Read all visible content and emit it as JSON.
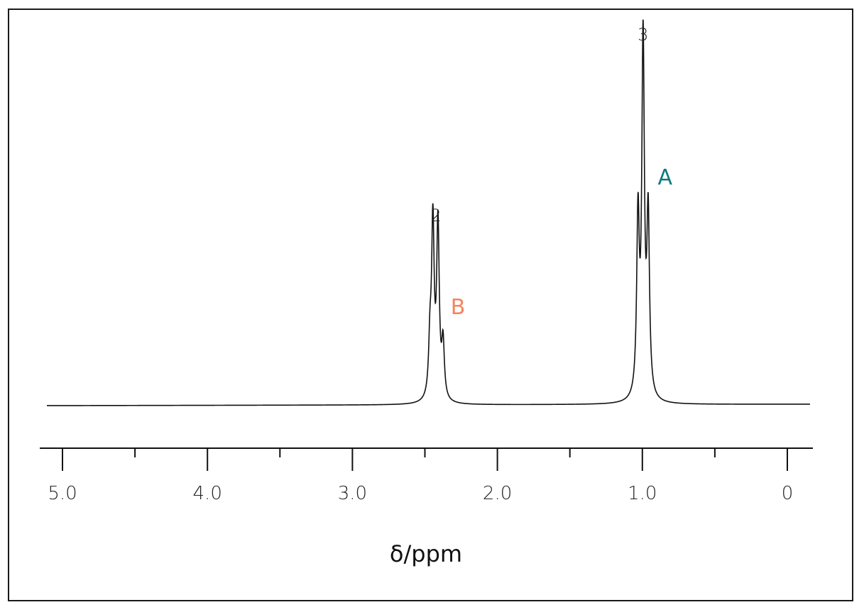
{
  "chart_data": {
    "type": "line",
    "title": "",
    "xlabel": "δ/ppm",
    "ylabel": "",
    "x_axis_reversed": true,
    "xlim": [
      5.1,
      -0.17
    ],
    "x_ticks_major": [
      5.0,
      4.0,
      3.0,
      2.0,
      1.0,
      0.0
    ],
    "x_tick_labels": [
      "5.0",
      "4.0",
      "3.0",
      "2.0",
      "1.0",
      "0"
    ],
    "x_ticks_minor": [
      4.5,
      3.5,
      2.5,
      1.5,
      0.5
    ],
    "grid": false,
    "signals": [
      {
        "label": "B",
        "label_color": "#f4845f",
        "integration": "2",
        "multiplicity": "quartet",
        "lines": [
          {
            "shift": 2.465,
            "intensity": 0.145
          },
          {
            "shift": 2.445,
            "intensity": 0.49
          },
          {
            "shift": 2.41,
            "intensity": 0.49
          },
          {
            "shift": 2.375,
            "intensity": 0.155
          }
        ]
      },
      {
        "label": "A",
        "label_color": "#0f7a7a",
        "integration": "3",
        "multiplicity": "triplet",
        "lines": [
          {
            "shift": 1.03,
            "intensity": 0.5
          },
          {
            "shift": 0.995,
            "intensity": 1.0
          },
          {
            "shift": 0.96,
            "intensity": 0.5
          }
        ]
      }
    ]
  }
}
